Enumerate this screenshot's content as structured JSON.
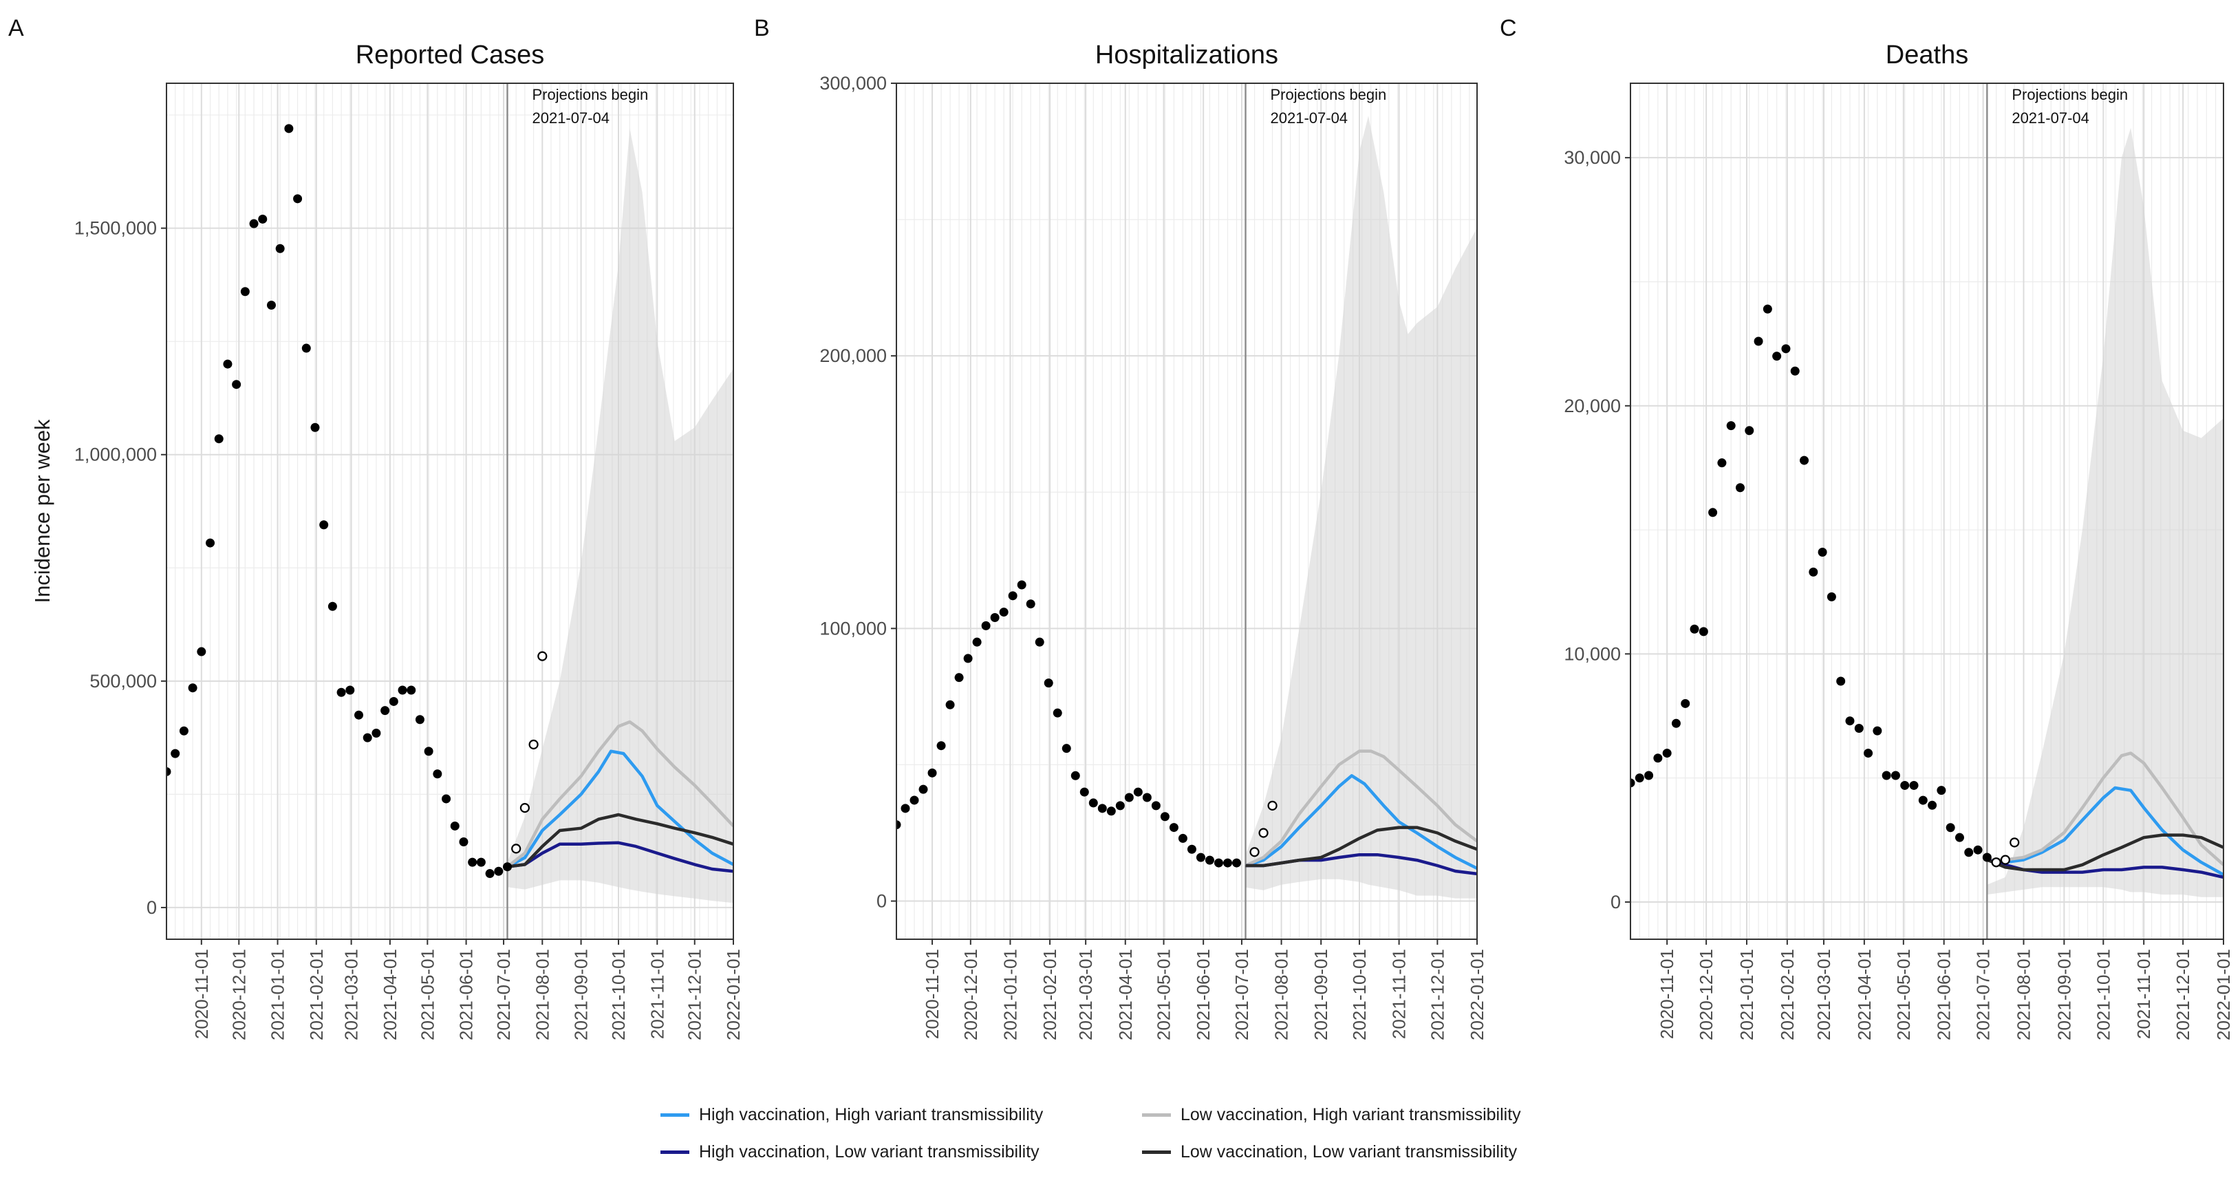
{
  "figure": {
    "ylabel": "Incidence per week",
    "annotation": [
      "Projections begin",
      "2021-07-04"
    ]
  },
  "legend": {
    "items": [
      {
        "label": "High vaccination, High variant transmissibility",
        "color": "#2e9bf0"
      },
      {
        "label": "Low vaccination, High variant transmissibility",
        "color": "#bdbdbd"
      },
      {
        "label": "High vaccination, Low variant transmissibility",
        "color": "#1a1a8c"
      },
      {
        "label": "Low vaccination, Low variant transmissibility",
        "color": "#2b2b2b"
      }
    ]
  },
  "chart_data": [
    {
      "panel": "A",
      "type": "line",
      "title": "Reported Cases",
      "ylabel": "Incidence per week",
      "ylim": [
        -70000,
        1820000
      ],
      "xlim": [
        "2020-10-04",
        "2022-01-01"
      ],
      "projection_start": "2021-07-04",
      "x_ticks": [
        "2020-11-01",
        "2020-12-01",
        "2021-01-01",
        "2021-02-01",
        "2021-03-01",
        "2021-04-01",
        "2021-05-01",
        "2021-06-01",
        "2021-07-01",
        "2021-08-01",
        "2021-09-01",
        "2021-10-01",
        "2021-11-01",
        "2021-12-01",
        "2022-01-01"
      ],
      "y_ticks": [
        0,
        500000,
        1000000,
        1500000
      ],
      "y_tick_labels": [
        "0",
        "500,000",
        "1,000,000",
        "1,500,000"
      ],
      "observed_start": "2020-10-04",
      "observed": [
        300000,
        340000,
        390000,
        485000,
        565000,
        805000,
        1035000,
        1200000,
        1155000,
        1360000,
        1510000,
        1520000,
        1330000,
        1455000,
        1720000,
        1565000,
        1235000,
        1060000,
        845000,
        665000,
        475000,
        480000,
        425000,
        375000,
        385000,
        435000,
        455000,
        480000,
        480000,
        415000,
        345000,
        295000,
        240000,
        180000,
        145000,
        100000,
        100000,
        75000,
        80000,
        90000
      ],
      "observed_open": [
        [
          "2021-07-11",
          130000
        ],
        [
          "2021-07-18",
          220000
        ],
        [
          "2021-07-25",
          360000
        ],
        [
          "2021-08-01",
          555000
        ]
      ],
      "band": {
        "x": [
          "2021-07-04",
          "2021-07-18",
          "2021-08-01",
          "2021-08-15",
          "2021-09-01",
          "2021-09-15",
          "2021-10-01",
          "2021-10-10",
          "2021-10-20",
          "2021-11-01",
          "2021-11-15",
          "2021-12-01",
          "2021-12-15",
          "2022-01-01"
        ],
        "upper": [
          100000,
          200000,
          350000,
          500000,
          760000,
          1060000,
          1420000,
          1720000,
          1580000,
          1250000,
          1030000,
          1060000,
          1120000,
          1190000
        ],
        "lower": [
          45000,
          40000,
          50000,
          60000,
          60000,
          55000,
          45000,
          40000,
          35000,
          30000,
          25000,
          20000,
          15000,
          10000
        ]
      },
      "series": [
        {
          "name": "High vaccination, High variant transmissibility",
          "color": "#2e9bf0",
          "x": [
            "2021-07-04",
            "2021-07-18",
            "2021-08-01",
            "2021-08-15",
            "2021-09-01",
            "2021-09-15",
            "2021-09-25",
            "2021-10-05",
            "2021-10-20",
            "2021-11-01",
            "2021-11-15",
            "2021-12-01",
            "2021-12-15",
            "2022-01-01"
          ],
          "y": [
            90000,
            110000,
            170000,
            205000,
            250000,
            300000,
            345000,
            340000,
            290000,
            225000,
            190000,
            150000,
            120000,
            95000
          ]
        },
        {
          "name": "Low vaccination, High variant transmissibility",
          "color": "#bdbdbd",
          "x": [
            "2021-07-04",
            "2021-07-18",
            "2021-08-01",
            "2021-08-15",
            "2021-09-01",
            "2021-09-15",
            "2021-10-01",
            "2021-10-10",
            "2021-10-20",
            "2021-11-01",
            "2021-11-15",
            "2021-12-01",
            "2021-12-15",
            "2022-01-01"
          ],
          "y": [
            90000,
            120000,
            195000,
            240000,
            290000,
            345000,
            400000,
            410000,
            390000,
            350000,
            310000,
            270000,
            230000,
            180000
          ]
        },
        {
          "name": "High vaccination, Low variant transmissibility",
          "color": "#1a1a8c",
          "x": [
            "2021-07-04",
            "2021-07-18",
            "2021-08-01",
            "2021-08-15",
            "2021-09-01",
            "2021-09-15",
            "2021-10-01",
            "2021-10-15",
            "2021-11-01",
            "2021-11-15",
            "2021-12-01",
            "2021-12-15",
            "2022-01-01"
          ],
          "y": [
            90000,
            95000,
            120000,
            140000,
            140000,
            142000,
            143000,
            135000,
            120000,
            108000,
            95000,
            85000,
            80000
          ]
        },
        {
          "name": "Low vaccination, Low variant transmissibility",
          "color": "#2b2b2b",
          "x": [
            "2021-07-04",
            "2021-07-18",
            "2021-08-01",
            "2021-08-15",
            "2021-09-01",
            "2021-09-15",
            "2021-10-01",
            "2021-10-15",
            "2021-11-01",
            "2021-11-15",
            "2021-12-01",
            "2021-12-15",
            "2022-01-01"
          ],
          "y": [
            90000,
            95000,
            135000,
            170000,
            175000,
            195000,
            205000,
            195000,
            185000,
            175000,
            165000,
            155000,
            140000
          ]
        }
      ]
    },
    {
      "panel": "B",
      "type": "line",
      "title": "Hospitalizations",
      "ylim": [
        -14000,
        300000
      ],
      "xlim": [
        "2020-10-04",
        "2022-01-01"
      ],
      "projection_start": "2021-07-04",
      "x_ticks": [
        "2020-11-01",
        "2020-12-01",
        "2021-01-01",
        "2021-02-01",
        "2021-03-01",
        "2021-04-01",
        "2021-05-01",
        "2021-06-01",
        "2021-07-01",
        "2021-08-01",
        "2021-09-01",
        "2021-10-01",
        "2021-11-01",
        "2021-12-01",
        "2022-01-01"
      ],
      "y_ticks": [
        0,
        100000,
        200000,
        300000
      ],
      "y_tick_labels": [
        "0",
        "100,000",
        "200,000",
        "300,000"
      ],
      "observed_start": "2020-10-04",
      "observed": [
        28000,
        34000,
        37000,
        41000,
        47000,
        57000,
        72000,
        82000,
        89000,
        95000,
        101000,
        104000,
        106000,
        112000,
        116000,
        109000,
        95000,
        80000,
        69000,
        56000,
        46000,
        40000,
        36000,
        34000,
        33000,
        35000,
        38000,
        40000,
        38000,
        35000,
        31000,
        27000,
        23000,
        19000,
        16000,
        15000,
        14000,
        14000,
        14000
      ],
      "observed_open": [
        [
          "2021-07-11",
          18000
        ],
        [
          "2021-07-18",
          25000
        ],
        [
          "2021-07-25",
          35000
        ]
      ],
      "band": {
        "x": [
          "2021-07-04",
          "2021-07-18",
          "2021-08-01",
          "2021-08-15",
          "2021-09-01",
          "2021-09-15",
          "2021-10-01",
          "2021-10-08",
          "2021-10-20",
          "2021-11-01",
          "2021-11-08",
          "2021-11-15",
          "2021-12-01",
          "2021-12-15",
          "2022-01-01"
        ],
        "upper": [
          17000,
          35000,
          60000,
          100000,
          150000,
          200000,
          275000,
          288000,
          260000,
          220000,
          208000,
          212000,
          218000,
          232000,
          247000
        ],
        "lower": [
          5000,
          4000,
          6000,
          7000,
          8000,
          8000,
          7000,
          6000,
          5000,
          4000,
          3000,
          2000,
          2000,
          1000,
          1000
        ]
      },
      "series": [
        {
          "name": "High vaccination, High variant transmissibility",
          "color": "#2e9bf0",
          "x": [
            "2021-07-04",
            "2021-07-18",
            "2021-08-01",
            "2021-08-15",
            "2021-09-01",
            "2021-09-15",
            "2021-09-25",
            "2021-10-05",
            "2021-10-20",
            "2021-11-01",
            "2021-11-15",
            "2021-12-01",
            "2021-12-15",
            "2022-01-01"
          ],
          "y": [
            13000,
            15000,
            20000,
            27000,
            35000,
            42000,
            46000,
            43000,
            35000,
            29000,
            25000,
            20000,
            16000,
            12000
          ]
        },
        {
          "name": "Low vaccination, High variant transmissibility",
          "color": "#bdbdbd",
          "x": [
            "2021-07-04",
            "2021-07-18",
            "2021-08-01",
            "2021-08-15",
            "2021-09-01",
            "2021-09-15",
            "2021-10-01",
            "2021-10-10",
            "2021-10-20",
            "2021-11-01",
            "2021-11-15",
            "2021-12-01",
            "2021-12-15",
            "2022-01-01"
          ],
          "y": [
            13000,
            16000,
            22000,
            32000,
            42000,
            50000,
            55000,
            55000,
            53000,
            48000,
            42000,
            35000,
            28000,
            22000
          ]
        },
        {
          "name": "High vaccination, Low variant transmissibility",
          "color": "#1a1a8c",
          "x": [
            "2021-07-04",
            "2021-07-18",
            "2021-08-01",
            "2021-08-15",
            "2021-09-01",
            "2021-09-15",
            "2021-10-01",
            "2021-10-15",
            "2021-11-01",
            "2021-11-15",
            "2021-12-01",
            "2021-12-15",
            "2022-01-01"
          ],
          "y": [
            13000,
            13000,
            14000,
            15000,
            15000,
            16000,
            17000,
            17000,
            16000,
            15000,
            13000,
            11000,
            10000
          ]
        },
        {
          "name": "Low vaccination, Low variant transmissibility",
          "color": "#2b2b2b",
          "x": [
            "2021-07-04",
            "2021-07-18",
            "2021-08-01",
            "2021-08-15",
            "2021-09-01",
            "2021-09-15",
            "2021-10-01",
            "2021-10-15",
            "2021-11-01",
            "2021-11-15",
            "2021-12-01",
            "2021-12-15",
            "2022-01-01"
          ],
          "y": [
            13000,
            13000,
            14000,
            15000,
            16000,
            19000,
            23000,
            26000,
            27000,
            27000,
            25000,
            22000,
            19000
          ]
        }
      ]
    },
    {
      "panel": "C",
      "type": "line",
      "title": "Deaths",
      "ylim": [
        -1500,
        33000
      ],
      "xlim": [
        "2020-10-04",
        "2022-01-01"
      ],
      "projection_start": "2021-07-04",
      "x_ticks": [
        "2020-11-01",
        "2020-12-01",
        "2021-01-01",
        "2021-02-01",
        "2021-03-01",
        "2021-04-01",
        "2021-05-01",
        "2021-06-01",
        "2021-07-01",
        "2021-08-01",
        "2021-09-01",
        "2021-10-01",
        "2021-11-01",
        "2021-12-01",
        "2022-01-01"
      ],
      "y_ticks": [
        0,
        10000,
        20000,
        30000
      ],
      "y_tick_labels": [
        "0",
        "10,000",
        "20,000",
        "30,000"
      ],
      "observed_start": "2020-10-04",
      "observed": [
        4800,
        5000,
        5100,
        5800,
        6000,
        7200,
        8000,
        11000,
        10900,
        15700,
        17700,
        19200,
        16700,
        19000,
        22600,
        23900,
        22000,
        22300,
        21400,
        17800,
        13300,
        14100,
        12300,
        8900,
        7300,
        7000,
        6000,
        6900,
        5100,
        5100,
        4700,
        4700,
        4100,
        3900,
        4500,
        3000,
        2600,
        2000,
        2100,
        1800
      ],
      "observed_open": [
        [
          "2021-07-11",
          1600
        ],
        [
          "2021-07-18",
          1700
        ],
        [
          "2021-07-25",
          2400
        ]
      ],
      "band": {
        "x": [
          "2021-07-04",
          "2021-07-18",
          "2021-08-01",
          "2021-08-15",
          "2021-09-01",
          "2021-09-15",
          "2021-10-01",
          "2021-10-15",
          "2021-10-22",
          "2021-11-01",
          "2021-11-15",
          "2021-12-01",
          "2021-12-15",
          "2022-01-01"
        ],
        "upper": [
          700,
          1000,
          3000,
          6000,
          10000,
          15000,
          22000,
          30000,
          31200,
          28000,
          21000,
          19000,
          18700,
          19500
        ],
        "lower": [
          300,
          400,
          500,
          600,
          600,
          600,
          600,
          500,
          400,
          400,
          300,
          300,
          200,
          200
        ]
      },
      "series": [
        {
          "name": "High vaccination, High variant transmissibility",
          "color": "#2e9bf0",
          "x": [
            "2021-07-04",
            "2021-07-18",
            "2021-08-01",
            "2021-08-15",
            "2021-09-01",
            "2021-09-15",
            "2021-10-01",
            "2021-10-10",
            "2021-10-22",
            "2021-11-01",
            "2021-11-15",
            "2021-12-01",
            "2021-12-15",
            "2022-01-01"
          ],
          "y": [
            1700,
            1600,
            1700,
            2000,
            2500,
            3300,
            4200,
            4600,
            4500,
            3800,
            2900,
            2100,
            1600,
            1100
          ]
        },
        {
          "name": "Low vaccination, High variant transmissibility",
          "color": "#bdbdbd",
          "x": [
            "2021-07-04",
            "2021-07-18",
            "2021-08-01",
            "2021-08-15",
            "2021-09-01",
            "2021-09-15",
            "2021-10-01",
            "2021-10-15",
            "2021-10-22",
            "2021-11-01",
            "2021-11-15",
            "2021-12-01",
            "2021-12-15",
            "2022-01-01"
          ],
          "y": [
            1700,
            1700,
            1800,
            2100,
            2800,
            3800,
            5000,
            5900,
            6000,
            5600,
            4600,
            3400,
            2300,
            1500
          ]
        },
        {
          "name": "High vaccination, Low variant transmissibility",
          "color": "#1a1a8c",
          "x": [
            "2021-07-04",
            "2021-07-18",
            "2021-08-01",
            "2021-08-15",
            "2021-09-01",
            "2021-09-15",
            "2021-10-01",
            "2021-10-15",
            "2021-11-01",
            "2021-11-15",
            "2021-12-01",
            "2021-12-15",
            "2022-01-01"
          ],
          "y": [
            1700,
            1500,
            1300,
            1200,
            1200,
            1200,
            1300,
            1300,
            1400,
            1400,
            1300,
            1200,
            1000
          ]
        },
        {
          "name": "Low vaccination, Low variant transmissibility",
          "color": "#2b2b2b",
          "x": [
            "2021-07-04",
            "2021-07-18",
            "2021-08-01",
            "2021-08-15",
            "2021-09-01",
            "2021-09-15",
            "2021-10-01",
            "2021-10-15",
            "2021-11-01",
            "2021-11-15",
            "2021-12-01",
            "2021-12-15",
            "2022-01-01"
          ],
          "y": [
            1700,
            1400,
            1300,
            1300,
            1300,
            1500,
            1900,
            2200,
            2600,
            2700,
            2700,
            2600,
            2200
          ]
        }
      ]
    }
  ]
}
